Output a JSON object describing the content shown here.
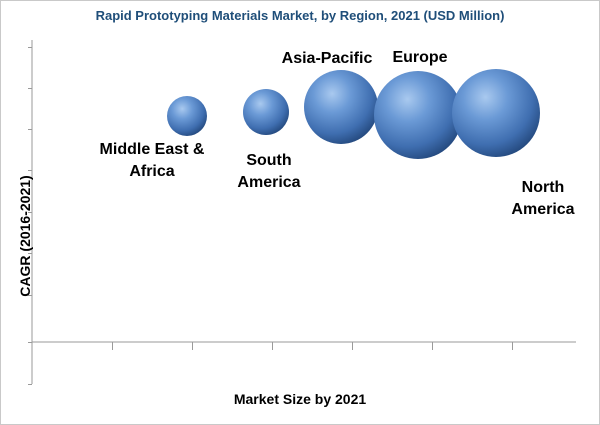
{
  "chart_data": {
    "type": "bubble",
    "title": "Rapid Prototyping Materials Market, by Region, 2021 (USD Million)",
    "xlabel": "Market Size by 2021",
    "ylabel": "CAGR (2016-2021)",
    "grid": false,
    "bubble_color": "#4a7ebb",
    "series": [
      {
        "label": "Middle East &\nAfrica",
        "x": 2.5,
        "y": 7.5,
        "size": 20
      },
      {
        "label": "South\nAmerica",
        "x": 3.5,
        "y": 7.5,
        "size": 23
      },
      {
        "label": "Asia-Pacific",
        "x": 4.5,
        "y": 7.5,
        "size": 37
      },
      {
        "label": "Europe",
        "x": 5.5,
        "y": 7.5,
        "size": 44
      },
      {
        "label": "North\nAmerica",
        "x": 6.5,
        "y": 7.5,
        "size": 44
      }
    ]
  }
}
